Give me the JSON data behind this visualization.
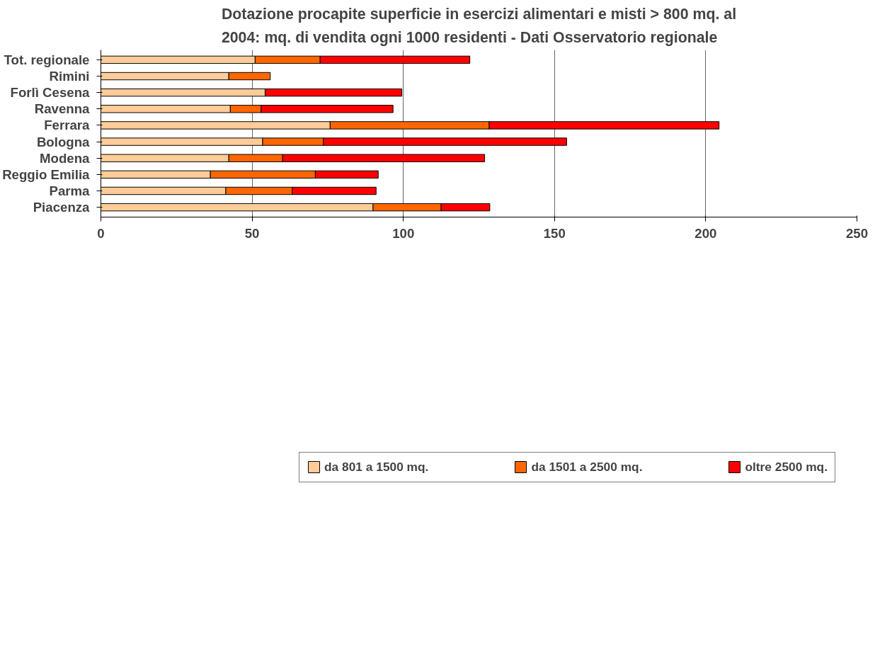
{
  "chart_data": {
    "type": "bar",
    "orientation": "horizontal",
    "stacked": true,
    "title": "Dotazione procapite superficie in esercizi alimentari e misti > 800 mq. al 2004: mq. di vendita ogni 1000 residenti - Dati Osservatorio regionale",
    "categories": [
      "Tot. regionale",
      "Rimini",
      "Forlì Cesena",
      "Ravenna",
      "Ferrara",
      "Bologna",
      "Modena",
      "Reggio Emilia",
      "Parma",
      "Piacenza"
    ],
    "series": [
      {
        "name": "da 801 a 1500 mq.",
        "color": "#ffcc99",
        "values": [
          51,
          42.3,
          54.3,
          42.8,
          75.8,
          53.5,
          42.3,
          36.2,
          41.3,
          90
        ]
      },
      {
        "name": "da 1501 a 2500 mq.",
        "color": "#ff6600",
        "values": [
          21.5,
          13.7,
          null,
          10.2,
          52.6,
          20.1,
          17.8,
          34.7,
          22,
          22.5
        ]
      },
      {
        "name": "oltre 2500 mq.",
        "color": "#ff0000",
        "values": [
          49.5,
          null,
          45.2,
          43.6,
          76,
          80.4,
          66.8,
          20.8,
          27.7,
          16.1
        ]
      }
    ],
    "xlim": [
      0,
      250
    ],
    "xticks": [
      0,
      50,
      100,
      150,
      200,
      250
    ],
    "grid": "x",
    "legend": "bottom"
  }
}
